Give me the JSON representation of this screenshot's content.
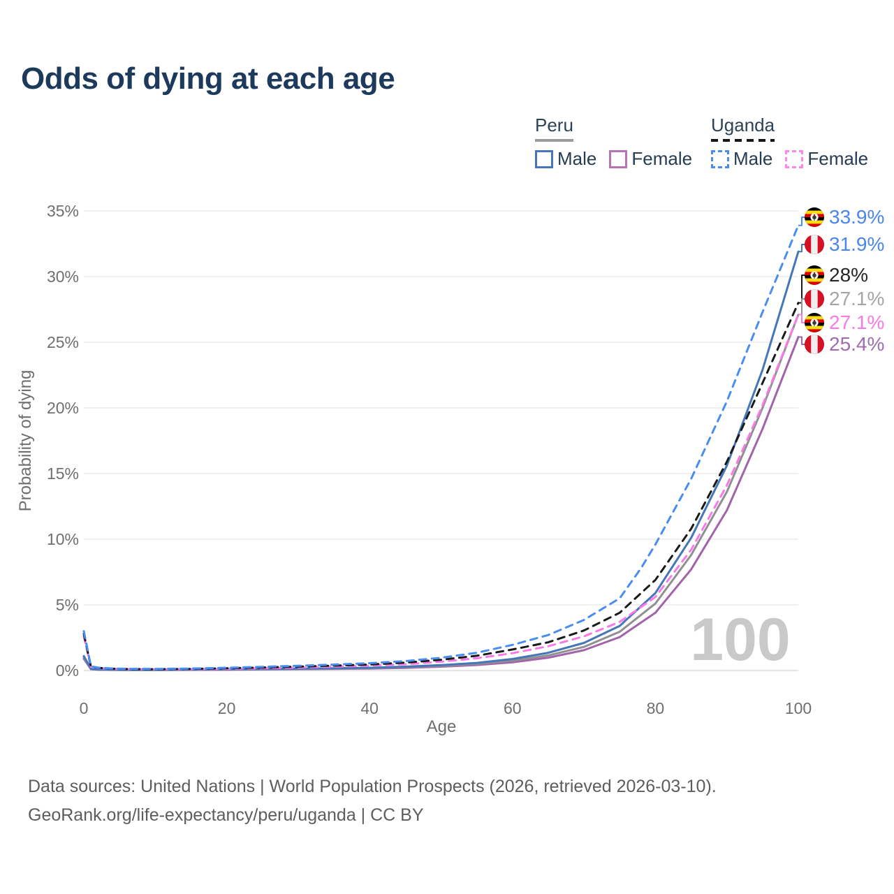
{
  "title": "Odds of dying at each age",
  "legend": {
    "groups": [
      {
        "name": "Peru",
        "line_style": "solid",
        "underline_color": "#9c9c9c",
        "items": [
          {
            "label": "Male",
            "color": "#4576b9",
            "dashed": false
          },
          {
            "label": "Female",
            "color": "#b674b4",
            "dashed": false
          }
        ]
      },
      {
        "name": "Uganda",
        "line_style": "dashed",
        "underline_color": "#161616",
        "items": [
          {
            "label": "Male",
            "color": "#4a8df0",
            "dashed": true
          },
          {
            "label": "Female",
            "color": "#fb86ec",
            "dashed": true
          }
        ]
      }
    ]
  },
  "chart_data": {
    "type": "line",
    "title": "Odds of dying at each age",
    "xlabel": "Age",
    "ylabel": "Probability of dying",
    "xlim": [
      0,
      100
    ],
    "ylim_pct": [
      0,
      35
    ],
    "x_ticks": [
      0,
      20,
      40,
      60,
      80,
      100
    ],
    "y_ticks_pct": [
      0,
      5,
      10,
      15,
      20,
      25,
      30,
      35
    ],
    "grid": "horizontal-only",
    "legend_position": "top-right",
    "watermark": "100",
    "series": [
      {
        "name": "Uganda Male",
        "country": "Uganda",
        "sex": "Male",
        "color": "#4a8df0",
        "dashed": true,
        "flag": "uganda",
        "end_label": "33.9%",
        "end_value_pct": 33.9,
        "label_color": "#4a86e8",
        "points": [
          [
            0,
            3.0
          ],
          [
            1,
            0.32
          ],
          [
            2,
            0.22
          ],
          [
            4,
            0.16
          ],
          [
            6,
            0.13
          ],
          [
            10,
            0.12
          ],
          [
            15,
            0.15
          ],
          [
            20,
            0.21
          ],
          [
            25,
            0.28
          ],
          [
            30,
            0.36
          ],
          [
            35,
            0.45
          ],
          [
            40,
            0.56
          ],
          [
            45,
            0.72
          ],
          [
            50,
            0.97
          ],
          [
            55,
            1.35
          ],
          [
            60,
            1.95
          ],
          [
            65,
            2.7
          ],
          [
            70,
            3.85
          ],
          [
            75,
            5.5
          ],
          [
            78,
            7.8
          ],
          [
            80,
            9.6
          ],
          [
            85,
            14.6
          ],
          [
            90,
            20.5
          ],
          [
            95,
            27.3
          ],
          [
            100,
            33.9
          ]
        ]
      },
      {
        "name": "Peru Male",
        "country": "Peru",
        "sex": "Male",
        "color": "#4576b9",
        "dashed": false,
        "flag": "peru",
        "end_label": "31.9%",
        "end_value_pct": 31.9,
        "label_color": "#4a86e8",
        "points": [
          [
            0,
            1.1
          ],
          [
            1,
            0.12
          ],
          [
            2,
            0.08
          ],
          [
            4,
            0.06
          ],
          [
            6,
            0.05
          ],
          [
            10,
            0.05
          ],
          [
            15,
            0.07
          ],
          [
            20,
            0.1
          ],
          [
            25,
            0.12
          ],
          [
            30,
            0.14
          ],
          [
            35,
            0.17
          ],
          [
            40,
            0.21
          ],
          [
            45,
            0.29
          ],
          [
            50,
            0.41
          ],
          [
            55,
            0.58
          ],
          [
            60,
            0.88
          ],
          [
            65,
            1.35
          ],
          [
            70,
            2.1
          ],
          [
            75,
            3.4
          ],
          [
            80,
            5.9
          ],
          [
            85,
            10.1
          ],
          [
            90,
            15.6
          ],
          [
            95,
            22.9
          ],
          [
            100,
            31.9
          ]
        ]
      },
      {
        "name": "Uganda Both sexes",
        "country": "Uganda",
        "sex": "Both",
        "color": "#1a1a1a",
        "dashed": true,
        "flag": "uganda",
        "end_label": "28%",
        "end_value_pct": 28,
        "label_color": "#262626",
        "points": [
          [
            0,
            2.8
          ],
          [
            1,
            0.29
          ],
          [
            2,
            0.2
          ],
          [
            4,
            0.14
          ],
          [
            6,
            0.11
          ],
          [
            10,
            0.1
          ],
          [
            15,
            0.12
          ],
          [
            20,
            0.17
          ],
          [
            25,
            0.23
          ],
          [
            30,
            0.29
          ],
          [
            35,
            0.37
          ],
          [
            40,
            0.46
          ],
          [
            45,
            0.6
          ],
          [
            50,
            0.82
          ],
          [
            55,
            1.12
          ],
          [
            60,
            1.6
          ],
          [
            65,
            2.15
          ],
          [
            70,
            3.05
          ],
          [
            75,
            4.4
          ],
          [
            80,
            6.9
          ],
          [
            85,
            10.8
          ],
          [
            90,
            15.9
          ],
          [
            95,
            21.9
          ],
          [
            100,
            28.0
          ]
        ]
      },
      {
        "name": "Peru Both sexes",
        "country": "Peru",
        "sex": "Both",
        "color": "#909090",
        "dashed": false,
        "flag": "peru",
        "end_label": "27.1%",
        "end_value_pct": 27.1,
        "label_color": "#a5a5a5",
        "points": [
          [
            0,
            1.0
          ],
          [
            1,
            0.11
          ],
          [
            2,
            0.07
          ],
          [
            4,
            0.055
          ],
          [
            6,
            0.05
          ],
          [
            10,
            0.045
          ],
          [
            15,
            0.06
          ],
          [
            20,
            0.08
          ],
          [
            25,
            0.1
          ],
          [
            30,
            0.12
          ],
          [
            35,
            0.15
          ],
          [
            40,
            0.18
          ],
          [
            45,
            0.25
          ],
          [
            50,
            0.35
          ],
          [
            55,
            0.5
          ],
          [
            60,
            0.75
          ],
          [
            65,
            1.15
          ],
          [
            70,
            1.8
          ],
          [
            75,
            2.95
          ],
          [
            80,
            5.1
          ],
          [
            85,
            8.8
          ],
          [
            90,
            13.6
          ],
          [
            95,
            20.0
          ],
          [
            100,
            27.1
          ]
        ]
      },
      {
        "name": "Uganda Female",
        "country": "Uganda",
        "sex": "Female",
        "color": "#f879e8",
        "dashed": true,
        "flag": "uganda",
        "end_label": "27.1%",
        "end_value_pct": 27.1,
        "label_color": "#f879e8",
        "points": [
          [
            0,
            2.6
          ],
          [
            1,
            0.27
          ],
          [
            2,
            0.18
          ],
          [
            4,
            0.13
          ],
          [
            6,
            0.1
          ],
          [
            10,
            0.09
          ],
          [
            15,
            0.1
          ],
          [
            20,
            0.13
          ],
          [
            25,
            0.17
          ],
          [
            30,
            0.22
          ],
          [
            35,
            0.29
          ],
          [
            40,
            0.37
          ],
          [
            45,
            0.48
          ],
          [
            50,
            0.67
          ],
          [
            55,
            0.93
          ],
          [
            60,
            1.32
          ],
          [
            65,
            1.85
          ],
          [
            70,
            2.6
          ],
          [
            75,
            3.7
          ],
          [
            80,
            5.6
          ],
          [
            85,
            9.2
          ],
          [
            90,
            14.1
          ],
          [
            95,
            20.2
          ],
          [
            100,
            27.1
          ]
        ]
      },
      {
        "name": "Peru Female",
        "country": "Peru",
        "sex": "Female",
        "color": "#a263aa",
        "dashed": false,
        "flag": "peru",
        "end_label": "25.4%",
        "end_value_pct": 25.4,
        "label_color": "#a06cae",
        "points": [
          [
            0,
            0.9
          ],
          [
            1,
            0.1
          ],
          [
            2,
            0.06
          ],
          [
            4,
            0.05
          ],
          [
            6,
            0.045
          ],
          [
            10,
            0.04
          ],
          [
            15,
            0.05
          ],
          [
            20,
            0.06
          ],
          [
            25,
            0.08
          ],
          [
            30,
            0.1
          ],
          [
            35,
            0.12
          ],
          [
            40,
            0.15
          ],
          [
            45,
            0.2
          ],
          [
            50,
            0.29
          ],
          [
            55,
            0.42
          ],
          [
            60,
            0.62
          ],
          [
            65,
            0.98
          ],
          [
            70,
            1.55
          ],
          [
            75,
            2.55
          ],
          [
            80,
            4.4
          ],
          [
            85,
            7.7
          ],
          [
            90,
            12.2
          ],
          [
            95,
            18.4
          ],
          [
            100,
            25.4
          ]
        ]
      }
    ]
  },
  "footer": {
    "line1": "Data sources: United Nations | World Population Prospects (2026, retrieved 2026-03-10).",
    "line2": "GeoRank.org/life-expectancy/peru/uganda | CC BY"
  }
}
